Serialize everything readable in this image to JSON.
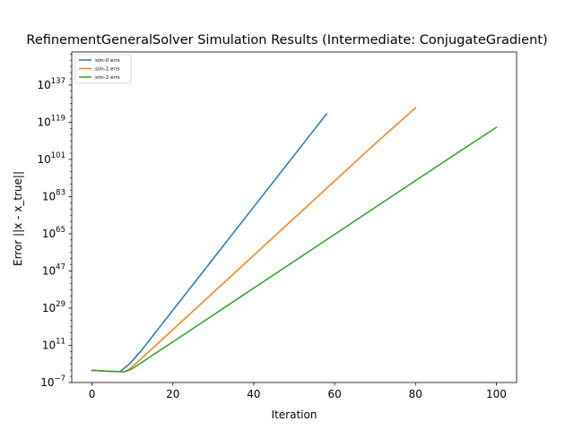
{
  "chart_data": {
    "type": "line",
    "title": "RefinementGeneralSolver Simulation Results (Intermediate: ConjugateGradient)",
    "xlabel": "Iteration",
    "ylabel": "Error ||x - x_true||",
    "yscale": "log",
    "xlim": [
      -5,
      105
    ],
    "ylim_log10": [
      -7,
      153
    ],
    "xticks": [
      0,
      20,
      40,
      60,
      80,
      100
    ],
    "yticks_exp": [
      -7,
      11,
      29,
      47,
      65,
      83,
      101,
      119,
      137
    ],
    "grid": false,
    "legend_position": "top-left",
    "series": [
      {
        "name": "sim-0 errs",
        "color": "#1f77b4",
        "x": [
          0,
          2,
          4,
          6,
          7,
          8,
          9,
          10,
          11,
          12,
          14,
          16,
          20,
          30,
          40,
          50,
          58
        ],
        "log10_y": [
          -1.1,
          -1.3,
          -1.5,
          -1.7,
          -1.6,
          0.0,
          1.5,
          3.5,
          5.8,
          8.0,
          13.0,
          18.0,
          28.0,
          53.0,
          78.0,
          103.0,
          123.0
        ]
      },
      {
        "name": "sim-1 errs",
        "color": "#ff7f0e",
        "x": [
          0,
          2,
          4,
          6,
          8,
          9,
          10,
          11,
          12,
          14,
          16,
          20,
          30,
          40,
          50,
          60,
          70,
          80
        ],
        "log10_y": [
          -1.1,
          -1.3,
          -1.5,
          -1.7,
          -1.8,
          -0.8,
          0.8,
          2.5,
          4.3,
          7.8,
          11.4,
          18.6,
          36.6,
          54.6,
          72.6,
          90.6,
          108.6,
          126.0
        ]
      },
      {
        "name": "sim-2 errs",
        "color": "#2ca02c",
        "x": [
          0,
          2,
          4,
          6,
          8,
          9,
          10,
          11,
          12,
          14,
          16,
          20,
          30,
          40,
          50,
          60,
          70,
          80,
          90,
          100
        ],
        "log10_y": [
          -1.1,
          -1.3,
          -1.5,
          -1.7,
          -1.8,
          -1.2,
          -0.2,
          1.0,
          2.3,
          4.9,
          7.5,
          12.7,
          25.7,
          38.7,
          51.7,
          64.7,
          77.7,
          90.7,
          103.7,
          116.5
        ]
      }
    ]
  }
}
